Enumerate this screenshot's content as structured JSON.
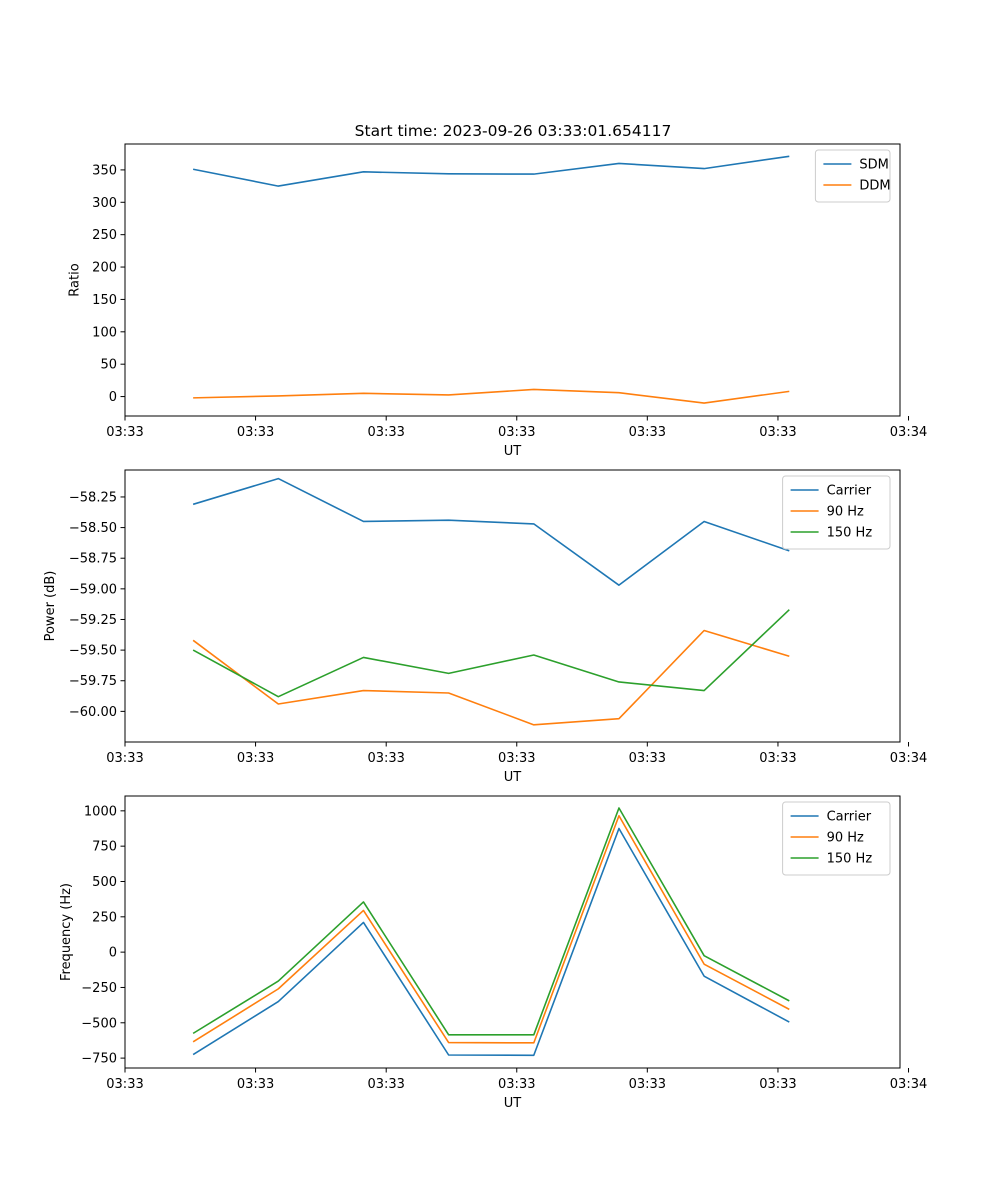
{
  "colors": {
    "c0": "#1f77b4",
    "c1": "#ff7f0e",
    "c2": "#2ca02c"
  },
  "chart_data": [
    {
      "type": "line",
      "title": "Start time: 2023-09-26 03:33:01.654117",
      "xlabel": "UT",
      "ylabel": "Ratio",
      "x": [
        1,
        2,
        3,
        4,
        5,
        6,
        7,
        8
      ],
      "xlim": [
        0.2,
        9.3
      ],
      "ylim": [
        -30,
        390
      ],
      "xticks": [
        0.2,
        1.733,
        3.267,
        4.8,
        6.333,
        7.867,
        9.4
      ],
      "xtick_labels": [
        "03:33",
        "03:33",
        "03:33",
        "03:33",
        "03:33",
        "03:33",
        "03:34"
      ],
      "yticks": [
        0,
        50,
        100,
        150,
        200,
        250,
        300,
        350
      ],
      "ytick_labels": [
        "0",
        "50",
        "100",
        "150",
        "200",
        "250",
        "300",
        "350"
      ],
      "legend": "top-right",
      "series": [
        {
          "name": "SDM",
          "color": "c0",
          "values": [
            351,
            325,
            347,
            344,
            343.5,
            360,
            352,
            371
          ]
        },
        {
          "name": "DDM",
          "color": "c1",
          "values": [
            -2,
            1,
            5,
            2.5,
            11,
            6,
            -10,
            8
          ]
        }
      ]
    },
    {
      "type": "line",
      "title": "",
      "xlabel": "UT",
      "ylabel": "Power (dB)",
      "x": [
        1,
        2,
        3,
        4,
        5,
        6,
        7,
        8
      ],
      "xlim": [
        0.2,
        9.3
      ],
      "ylim": [
        -60.25,
        -58.03
      ],
      "xticks": [
        0.2,
        1.733,
        3.267,
        4.8,
        6.333,
        7.867,
        9.4
      ],
      "xtick_labels": [
        "03:33",
        "03:33",
        "03:33",
        "03:33",
        "03:33",
        "03:33",
        "03:34"
      ],
      "yticks": [
        -60.0,
        -59.75,
        -59.5,
        -59.25,
        -59.0,
        -58.75,
        -58.5,
        -58.25
      ],
      "ytick_labels": [
        "−60.00",
        "−59.75",
        "−59.50",
        "−59.25",
        "−59.00",
        "−58.75",
        "−58.50",
        "−58.25"
      ],
      "legend": "top-right",
      "series": [
        {
          "name": "Carrier",
          "color": "c0",
          "values": [
            -58.31,
            -58.1,
            -58.45,
            -58.44,
            -58.47,
            -58.97,
            -58.45,
            -58.69
          ]
        },
        {
          "name": "90 Hz",
          "color": "c1",
          "values": [
            -59.42,
            -59.94,
            -59.83,
            -59.85,
            -60.11,
            -60.06,
            -59.34,
            -59.55
          ]
        },
        {
          "name": "150 Hz",
          "color": "c2",
          "values": [
            -59.5,
            -59.88,
            -59.56,
            -59.69,
            -59.54,
            -59.76,
            -59.83,
            -59.17
          ]
        }
      ]
    },
    {
      "type": "line",
      "title": "",
      "xlabel": "UT",
      "ylabel": "Frequency (Hz)",
      "x": [
        1,
        2,
        3,
        4,
        5,
        6,
        7,
        8
      ],
      "xlim": [
        0.2,
        9.3
      ],
      "ylim": [
        -820,
        1105
      ],
      "xticks": [
        0.2,
        1.733,
        3.267,
        4.8,
        6.333,
        7.867,
        9.4
      ],
      "xtick_labels": [
        "03:33",
        "03:33",
        "03:33",
        "03:33",
        "03:33",
        "03:33",
        "03:34"
      ],
      "yticks": [
        -750,
        -500,
        -250,
        0,
        250,
        500,
        750,
        1000
      ],
      "ytick_labels": [
        "−750",
        "−500",
        "−250",
        "0",
        "250",
        "500",
        "750",
        "1000"
      ],
      "legend": "top-right",
      "series": [
        {
          "name": "Carrier",
          "color": "c0",
          "values": [
            -725,
            -350,
            210,
            -728,
            -730,
            875,
            -170,
            -495
          ]
        },
        {
          "name": "90 Hz",
          "color": "c1",
          "values": [
            -635,
            -260,
            295,
            -640,
            -642,
            965,
            -85,
            -405
          ]
        },
        {
          "name": "150 Hz",
          "color": "c2",
          "values": [
            -575,
            -205,
            355,
            -585,
            -585,
            1020,
            -25,
            -345
          ]
        }
      ]
    }
  ]
}
